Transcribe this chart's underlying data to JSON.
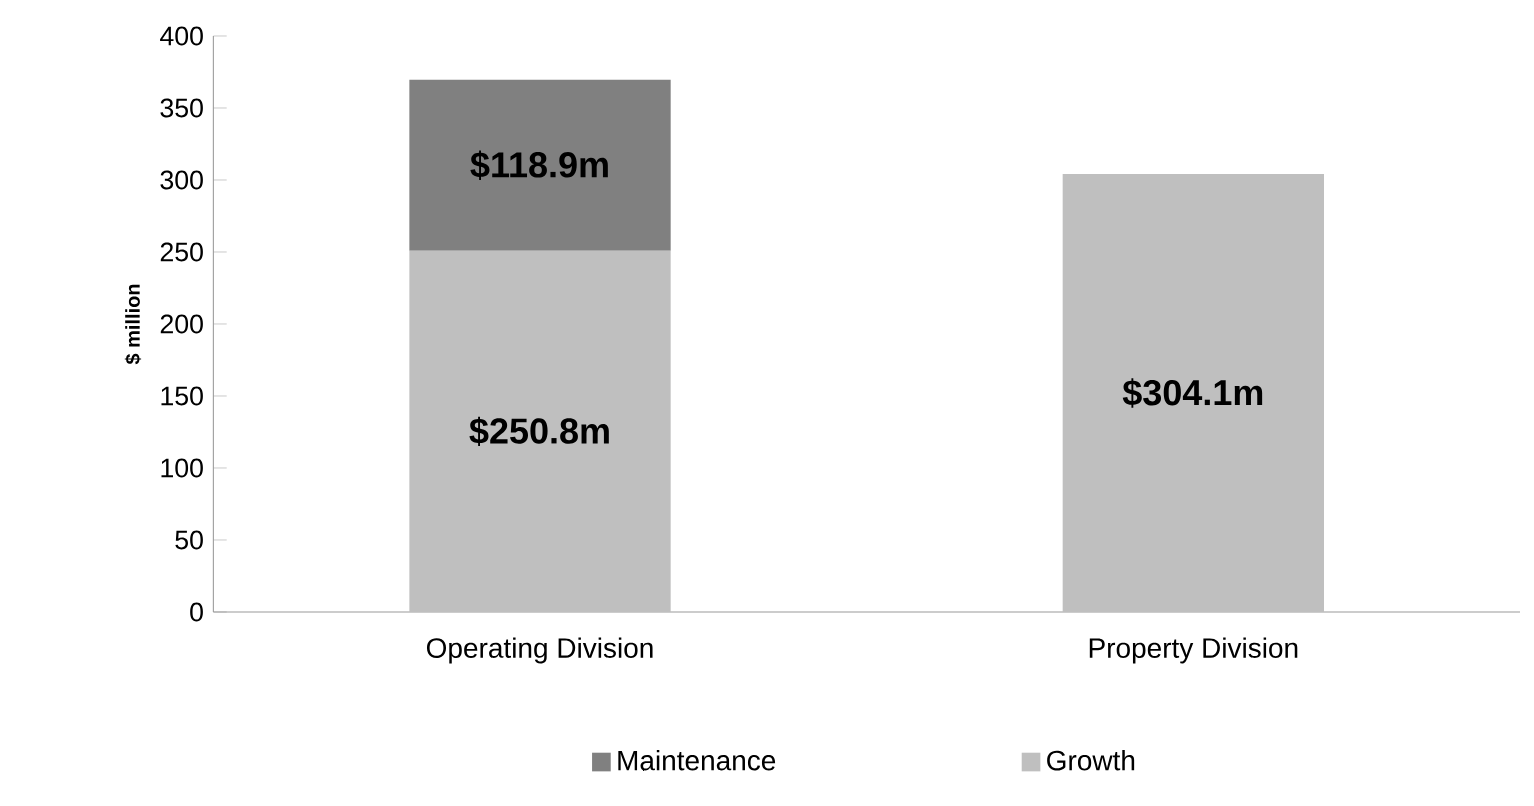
{
  "chart_data": {
    "type": "bar",
    "stacked": true,
    "ylabel": "$ million",
    "categories": [
      "Operating Division",
      "Property Division"
    ],
    "series": [
      {
        "name": "Growth",
        "color": "#bfbfbf",
        "values": [
          250.8,
          304.1
        ],
        "value_labels": [
          "$250.8m",
          "$304.1m"
        ]
      },
      {
        "name": "Maintenance",
        "color": "#808080",
        "values": [
          118.9,
          null
        ],
        "value_labels": [
          "$118.9m",
          null
        ]
      }
    ],
    "ylim": [
      0,
      400
    ],
    "yticks": [
      0,
      50,
      100,
      150,
      200,
      250,
      300,
      350,
      400
    ],
    "grid": false,
    "legend": "bottom"
  }
}
